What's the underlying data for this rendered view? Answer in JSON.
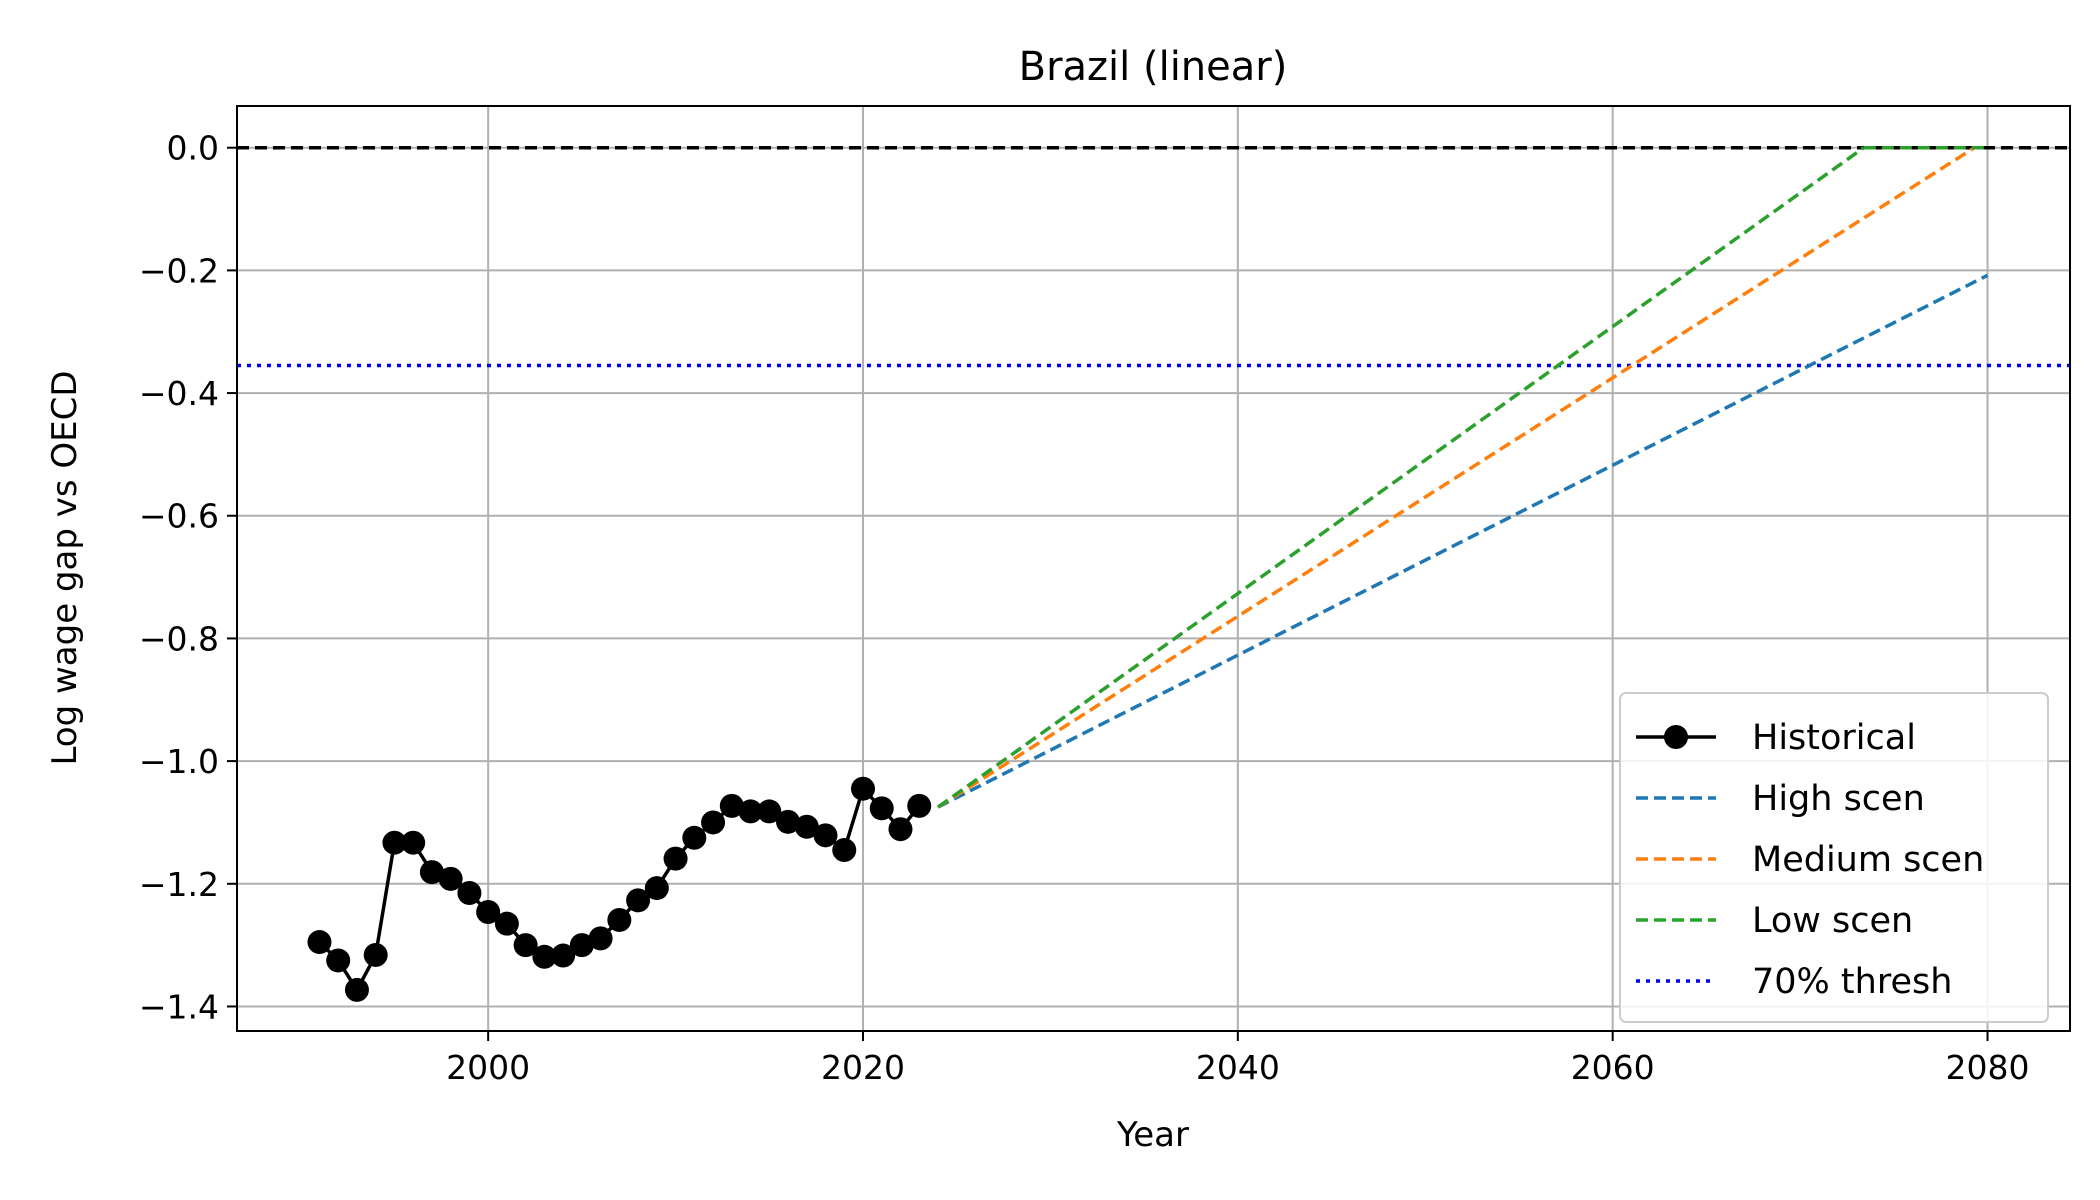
{
  "chart_data": {
    "type": "line",
    "title": "Brazil (linear)",
    "xlabel": "Year",
    "ylabel": "Log wage gap vs OECD",
    "xlim": [
      1986.6,
      2084.4
    ],
    "ylim": [
      -1.44,
      0.068
    ],
    "xticks": [
      {
        "value": 2000,
        "label": "2000"
      },
      {
        "value": 2020,
        "label": "2020"
      },
      {
        "value": 2040,
        "label": "2040"
      },
      {
        "value": 2060,
        "label": "2060"
      },
      {
        "value": 2080,
        "label": "2080"
      }
    ],
    "yticks": [
      {
        "value": 0.0,
        "label": "0.0"
      },
      {
        "value": -0.2,
        "label": "−0.2"
      },
      {
        "value": -0.4,
        "label": "−0.4"
      },
      {
        "value": -0.6,
        "label": "−0.6"
      },
      {
        "value": -0.8,
        "label": "−0.8"
      },
      {
        "value": -1.0,
        "label": "−1.0"
      },
      {
        "value": -1.2,
        "label": "−1.2"
      },
      {
        "value": -1.4,
        "label": "−1.4"
      }
    ],
    "grid": true,
    "legend_position": "lower-right",
    "reference_lines": [
      {
        "y": 0.0,
        "color": "#000000",
        "style": "dashed"
      },
      {
        "y": -0.355,
        "color": "#0000ff",
        "style": "dotted"
      }
    ],
    "series": [
      {
        "name": "Historical",
        "style": "solid-marker",
        "color": "#000000",
        "x": [
          1991,
          1992,
          1993,
          1994,
          1995,
          1996,
          1997,
          1998,
          1999,
          2000,
          2001,
          2002,
          2003,
          2004,
          2005,
          2006,
          2007,
          2008,
          2009,
          2010,
          2011,
          2012,
          2013,
          2014,
          2015,
          2016,
          2017,
          2018,
          2019,
          2020,
          2021,
          2022,
          2023
        ],
        "y": [
          -1.295,
          -1.325,
          -1.373,
          -1.316,
          -1.133,
          -1.133,
          -1.181,
          -1.192,
          -1.215,
          -1.246,
          -1.265,
          -1.3,
          -1.319,
          -1.317,
          -1.3,
          -1.289,
          -1.259,
          -1.227,
          -1.207,
          -1.159,
          -1.125,
          -1.1,
          -1.073,
          -1.082,
          -1.082,
          -1.099,
          -1.107,
          -1.121,
          -1.145,
          -1.045,
          -1.077,
          -1.111,
          -1.073
        ]
      },
      {
        "name": "High scen",
        "style": "dashed",
        "color": "#1f77b4",
        "x": [
          2024,
          2080
        ],
        "y": [
          -1.075,
          -0.208
        ]
      },
      {
        "name": "Medium scen",
        "style": "dashed",
        "color": "#ff7f0e",
        "x": [
          2024,
          2079.3
        ],
        "y": [
          -1.075,
          0.0
        ]
      },
      {
        "name": "Low scen",
        "style": "dashed",
        "color": "#2ca02c",
        "x": [
          2024,
          2073.4
        ],
        "y": [
          -1.075,
          0.0
        ]
      },
      {
        "name": "Low scen (flat)",
        "legend": false,
        "style": "dashed",
        "color": "#2ca02c",
        "x": [
          2073.4,
          2080
        ],
        "y": [
          0.0,
          0.0
        ]
      },
      {
        "name": "70% thresh",
        "style": "dotted",
        "color": "#0000ff",
        "x": [
          1986.6,
          2084.4
        ],
        "y": [
          -0.355,
          -0.355
        ]
      }
    ]
  }
}
